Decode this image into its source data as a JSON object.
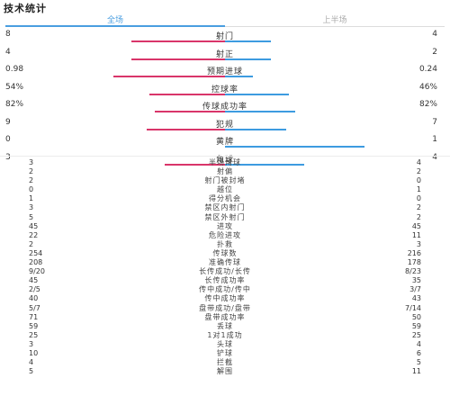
{
  "title": "技术统计",
  "tabs": [
    {
      "label": "全场",
      "active": true
    },
    {
      "label": "上半场",
      "active": false
    }
  ],
  "colors": {
    "home": "#d9356a",
    "away": "#3d9be0",
    "active_tab": "#4a9ee0"
  },
  "bar_stats": [
    {
      "label": "射门",
      "home": "8",
      "away": "4",
      "home_ratio": 0.67,
      "away_ratio": 0.33
    },
    {
      "label": "射正",
      "home": "4",
      "away": "2",
      "home_ratio": 0.67,
      "away_ratio": 0.33
    },
    {
      "label": "预期进球",
      "home": "0.98",
      "away": "0.24",
      "home_ratio": 0.8,
      "away_ratio": 0.2
    },
    {
      "label": "控球率",
      "home": "54%",
      "away": "46%",
      "home_ratio": 0.54,
      "away_ratio": 0.46
    },
    {
      "label": "传球成功率",
      "home": "82%",
      "away": "82%",
      "home_ratio": 0.5,
      "away_ratio": 0.5
    },
    {
      "label": "犯规",
      "home": "9",
      "away": "7",
      "home_ratio": 0.56,
      "away_ratio": 0.44
    },
    {
      "label": "黄牌",
      "home": "0",
      "away": "1",
      "home_ratio": 0.0,
      "away_ratio": 1.0
    },
    {
      "label": "角球",
      "home": "3",
      "away": "4",
      "home_ratio": 0.43,
      "away_ratio": 0.57
    }
  ],
  "detail_stats": [
    {
      "label": "半场角球",
      "home": "3",
      "away": "4"
    },
    {
      "label": "射偏",
      "home": "2",
      "away": "2"
    },
    {
      "label": "射门被封堵",
      "home": "2",
      "away": "0"
    },
    {
      "label": "越位",
      "home": "0",
      "away": "1"
    },
    {
      "label": "得分机会",
      "home": "1",
      "away": "0"
    },
    {
      "label": "禁区内射门",
      "home": "3",
      "away": "2"
    },
    {
      "label": "禁区外射门",
      "home": "5",
      "away": "2"
    },
    {
      "label": "进攻",
      "home": "45",
      "away": "45"
    },
    {
      "label": "危险进攻",
      "home": "22",
      "away": "11"
    },
    {
      "label": "扑救",
      "home": "2",
      "away": "3"
    },
    {
      "label": "传球数",
      "home": "254",
      "away": "216"
    },
    {
      "label": "准确传球",
      "home": "208",
      "away": "178"
    },
    {
      "label": "长传成功/长传",
      "home": "9/20",
      "away": "8/23"
    },
    {
      "label": "长传成功率",
      "home": "45",
      "away": "35"
    },
    {
      "label": "传中成功/传中",
      "home": "2/5",
      "away": "3/7"
    },
    {
      "label": "传中成功率",
      "home": "40",
      "away": "43"
    },
    {
      "label": "盘带成功/盘带",
      "home": "5/7",
      "away": "7/14"
    },
    {
      "label": "盘带成功率",
      "home": "71",
      "away": "50"
    },
    {
      "label": "poss",
      "home": "59",
      "away": "59",
      "label_text": "丢球"
    },
    {
      "label": "1对1成功",
      "home": "25",
      "away": "25"
    },
    {
      "label": "头球",
      "home": "3",
      "away": "4"
    },
    {
      "label": "铲球",
      "home": "10",
      "away": "6"
    },
    {
      "label": "拦截",
      "home": "4",
      "away": "5"
    },
    {
      "label": "解围",
      "home": "5",
      "away": "11"
    }
  ]
}
